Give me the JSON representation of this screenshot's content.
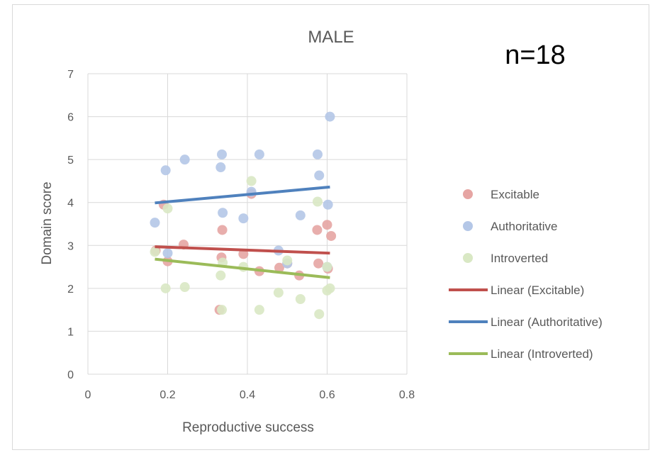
{
  "chart_data": {
    "type": "scatter",
    "title": "MALE",
    "annotation": "n=18",
    "xlabel": "Reproductive success",
    "ylabel": "Domain score",
    "xlim": [
      0,
      0.8
    ],
    "ylim": [
      0,
      7
    ],
    "x_ticks": [
      "0",
      "0.2",
      "0.4",
      "0.6",
      "0.8"
    ],
    "y_ticks": [
      "0",
      "1",
      "2",
      "3",
      "4",
      "5",
      "6",
      "7"
    ],
    "grid": "vertical and horizontal major gridlines",
    "legend_position": "right",
    "series": [
      {
        "name": "Excitable",
        "color": "#e6a5a3",
        "points": [
          [
            0.17,
            2.88
          ],
          [
            0.19,
            3.95
          ],
          [
            0.2,
            2.63
          ],
          [
            0.24,
            3.02
          ],
          [
            0.33,
            1.5
          ],
          [
            0.335,
            2.72
          ],
          [
            0.337,
            3.36
          ],
          [
            0.39,
            2.8
          ],
          [
            0.41,
            4.2
          ],
          [
            0.43,
            2.4
          ],
          [
            0.48,
            2.48
          ],
          [
            0.5,
            2.58
          ],
          [
            0.53,
            2.3
          ],
          [
            0.575,
            3.36
          ],
          [
            0.578,
            2.58
          ],
          [
            0.6,
            3.48
          ],
          [
            0.602,
            2.46
          ],
          [
            0.61,
            3.22
          ]
        ]
      },
      {
        "name": "Authoritative",
        "color": "#b4c7e7",
        "points": [
          [
            0.168,
            3.53
          ],
          [
            0.195,
            4.75
          ],
          [
            0.2,
            2.82
          ],
          [
            0.243,
            5.0
          ],
          [
            0.333,
            4.82
          ],
          [
            0.336,
            5.12
          ],
          [
            0.338,
            3.76
          ],
          [
            0.39,
            3.63
          ],
          [
            0.41,
            4.25
          ],
          [
            0.43,
            5.12
          ],
          [
            0.478,
            2.88
          ],
          [
            0.5,
            2.58
          ],
          [
            0.533,
            3.7
          ],
          [
            0.576,
            5.12
          ],
          [
            0.58,
            4.63
          ],
          [
            0.602,
            3.95
          ],
          [
            0.607,
            6.0
          ],
          [
            0.6,
            2.5
          ]
        ]
      },
      {
        "name": "Introverted",
        "color": "#d9e8c4",
        "points": [
          [
            0.168,
            2.85
          ],
          [
            0.195,
            2.0
          ],
          [
            0.2,
            3.86
          ],
          [
            0.243,
            2.03
          ],
          [
            0.333,
            2.3
          ],
          [
            0.336,
            1.5
          ],
          [
            0.338,
            2.6
          ],
          [
            0.39,
            2.5
          ],
          [
            0.41,
            4.5
          ],
          [
            0.43,
            1.5
          ],
          [
            0.478,
            1.9
          ],
          [
            0.5,
            2.65
          ],
          [
            0.533,
            1.75
          ],
          [
            0.576,
            4.02
          ],
          [
            0.58,
            1.4
          ],
          [
            0.6,
            2.5
          ],
          [
            0.6,
            1.95
          ],
          [
            0.607,
            2.0
          ]
        ]
      }
    ],
    "trendlines": [
      {
        "name": "Linear (Excitable)",
        "color": "#c0504d",
        "x": [
          0.168,
          0.607
        ],
        "y": [
          2.97,
          2.82
        ]
      },
      {
        "name": "Linear (Authoritative)",
        "color": "#4f81bd",
        "x": [
          0.168,
          0.607
        ],
        "y": [
          3.99,
          4.36
        ]
      },
      {
        "name": "Linear (Introverted)",
        "color": "#9bbb59",
        "x": [
          0.168,
          0.607
        ],
        "y": [
          2.68,
          2.25
        ]
      }
    ],
    "legend": [
      "Excitable",
      "Authoritative",
      "Introverted",
      "Linear (Excitable)",
      "Linear (Authoritative)",
      "Linear (Introverted)"
    ]
  }
}
